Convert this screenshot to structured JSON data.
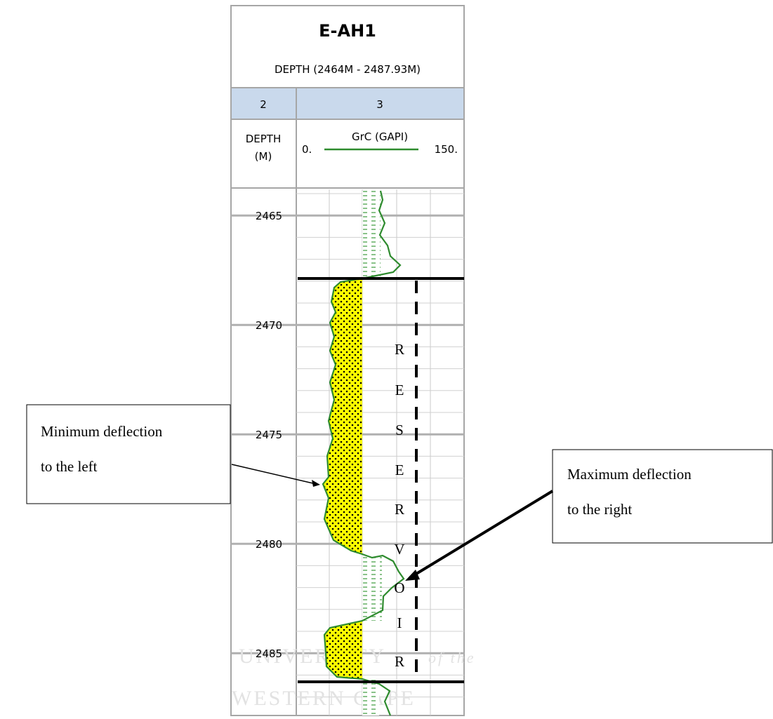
{
  "header": {
    "title": "E-AH1",
    "subtitle": "DEPTH (2464M - 2487.93M)"
  },
  "tracks": [
    {
      "number": "2",
      "label_lines": [
        "DEPTH",
        "(M)"
      ]
    },
    {
      "number": "3",
      "label": "GrC (GAPI)",
      "scale_min": "0.",
      "scale_max": "150."
    }
  ],
  "depth_labels": [
    "2465",
    "2470",
    "2475",
    "2480",
    "2485"
  ],
  "zone_letters": [
    "R",
    "E",
    "S",
    "E",
    "R",
    "V",
    "O",
    "I",
    "R"
  ],
  "callouts": [
    {
      "lines": [
        "Minimum deflection",
        "to the left"
      ]
    },
    {
      "lines": [
        "Maximum deflection",
        "to the right"
      ]
    }
  ],
  "watermark": [
    "UNIVERSITY",
    "of the",
    "WESTERN CAPE"
  ]
}
